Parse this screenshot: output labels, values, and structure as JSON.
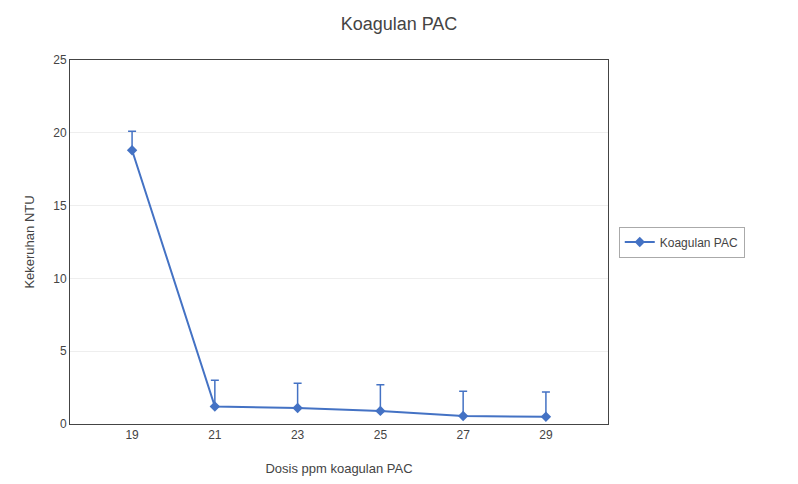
{
  "chart_data": {
    "type": "line",
    "title": "Koagulan PAC",
    "xlabel": "Dosis ppm koagulan PAC",
    "ylabel": "Kekeruhan NTU",
    "x": [
      19,
      21,
      23,
      25,
      27,
      29
    ],
    "series": [
      {
        "name": "Koagulan PAC",
        "color": "#4472C4",
        "marker": "diamond",
        "values": [
          18.8,
          1.2,
          1.1,
          0.9,
          0.55,
          0.5
        ],
        "error_upper": [
          1.3,
          1.8,
          1.7,
          1.8,
          1.7,
          1.7
        ],
        "error_lower": [
          0.0,
          0.0,
          0.0,
          0.0,
          0.0,
          0.0
        ]
      }
    ],
    "xlim": [
      17.5,
      30.5
    ],
    "xticks": [
      19,
      21,
      23,
      25,
      27,
      29
    ],
    "ylim": [
      0,
      25
    ],
    "yticks": [
      0,
      5,
      10,
      15,
      20,
      25
    ],
    "grid": "y",
    "legend": "right"
  }
}
